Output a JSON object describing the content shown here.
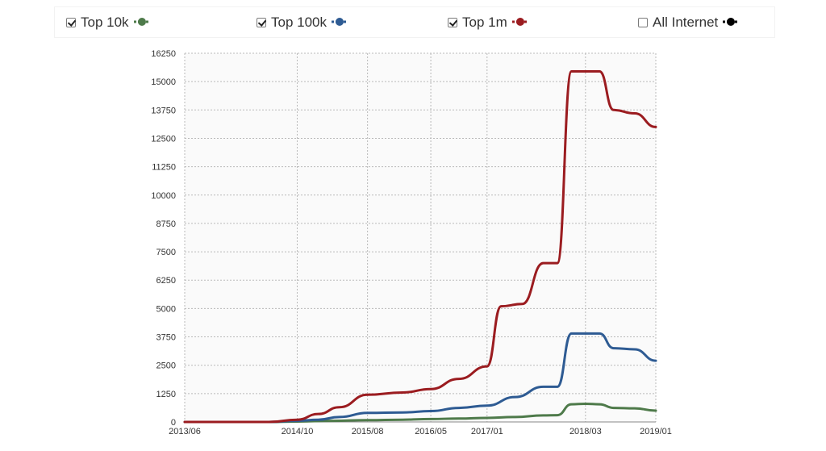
{
  "legend": [
    {
      "label": "Top 10k",
      "checked": true,
      "color": "#4e7a4a"
    },
    {
      "label": "Top 100k",
      "checked": true,
      "color": "#2e5b93"
    },
    {
      "label": "Top 1m",
      "checked": true,
      "color": "#9b1c20"
    },
    {
      "label": "All Internet",
      "checked": false,
      "color": "#000000"
    }
  ],
  "chart_data": {
    "type": "line",
    "title": "",
    "xlabel": "",
    "ylabel": "",
    "ylim": [
      0,
      16250
    ],
    "y_ticks": [
      0,
      1250,
      2500,
      3750,
      5000,
      6250,
      7500,
      8750,
      10000,
      11250,
      12500,
      13750,
      15000,
      16250
    ],
    "x_ticks": [
      "2013/06",
      "2014/10",
      "2015/08",
      "2016/05",
      "2017/01",
      "2018/03",
      "2019/01"
    ],
    "grid": true,
    "legend_position": "top",
    "series": [
      {
        "name": "Top 10k",
        "color": "#4e7a4a",
        "points": [
          [
            "2013/06",
            0
          ],
          [
            "2014/06",
            0
          ],
          [
            "2014/10",
            20
          ],
          [
            "2015/03",
            50
          ],
          [
            "2015/08",
            80
          ],
          [
            "2016/01",
            100
          ],
          [
            "2016/05",
            130
          ],
          [
            "2016/09",
            150
          ],
          [
            "2017/01",
            180
          ],
          [
            "2017/05",
            220
          ],
          [
            "2017/09",
            290
          ],
          [
            "2017/11",
            300
          ],
          [
            "2018/01",
            780
          ],
          [
            "2018/03",
            800
          ],
          [
            "2018/05",
            780
          ],
          [
            "2018/07",
            620
          ],
          [
            "2018/10",
            600
          ],
          [
            "2019/01",
            500
          ]
        ]
      },
      {
        "name": "Top 100k",
        "color": "#2e5b93",
        "points": [
          [
            "2013/06",
            0
          ],
          [
            "2014/06",
            0
          ],
          [
            "2014/10",
            50
          ],
          [
            "2015/01",
            100
          ],
          [
            "2015/04",
            220
          ],
          [
            "2015/08",
            400
          ],
          [
            "2016/01",
            420
          ],
          [
            "2016/05",
            480
          ],
          [
            "2016/09",
            620
          ],
          [
            "2017/01",
            720
          ],
          [
            "2017/05",
            1100
          ],
          [
            "2017/09",
            1550
          ],
          [
            "2017/11",
            1550
          ],
          [
            "2018/01",
            3900
          ],
          [
            "2018/03",
            3900
          ],
          [
            "2018/05",
            3900
          ],
          [
            "2018/07",
            3250
          ],
          [
            "2018/10",
            3200
          ],
          [
            "2019/01",
            2700
          ]
        ]
      },
      {
        "name": "Top 1m",
        "color": "#9b1c20",
        "points": [
          [
            "2013/06",
            0
          ],
          [
            "2014/06",
            0
          ],
          [
            "2014/10",
            100
          ],
          [
            "2015/01",
            350
          ],
          [
            "2015/04",
            650
          ],
          [
            "2015/08",
            1200
          ],
          [
            "2016/01",
            1300
          ],
          [
            "2016/05",
            1450
          ],
          [
            "2016/09",
            1900
          ],
          [
            "2017/01",
            2450
          ],
          [
            "2017/03",
            5100
          ],
          [
            "2017/06",
            5200
          ],
          [
            "2017/09",
            7000
          ],
          [
            "2017/11",
            7000
          ],
          [
            "2018/01",
            15450
          ],
          [
            "2018/03",
            15450
          ],
          [
            "2018/05",
            15450
          ],
          [
            "2018/07",
            13750
          ],
          [
            "2018/10",
            13600
          ],
          [
            "2019/01",
            13000
          ]
        ]
      }
    ]
  }
}
